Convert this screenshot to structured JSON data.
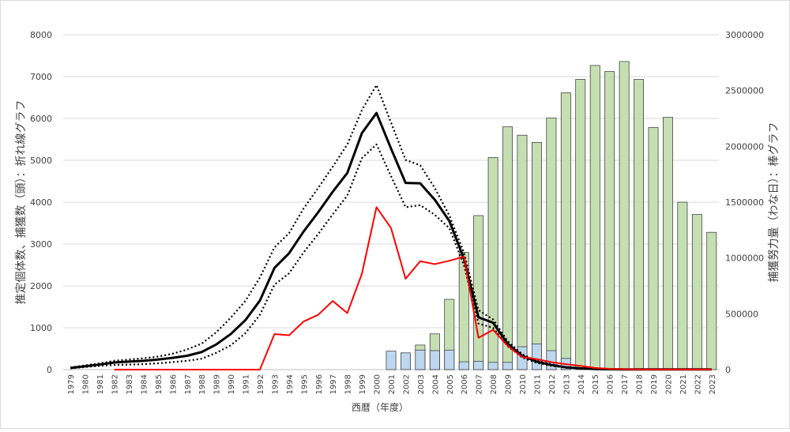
{
  "chart_data": {
    "type": "bar+line",
    "x_axis": {
      "title": "西暦（年度）",
      "categories": [
        "1979",
        "1980",
        "1981",
        "1982",
        "1983",
        "1984",
        "1985",
        "1986",
        "1987",
        "1988",
        "1989",
        "1990",
        "1991",
        "1992",
        "1993",
        "1994",
        "1995",
        "1996",
        "1997",
        "1998",
        "1999",
        "2000",
        "2001",
        "2002",
        "2003",
        "2004",
        "2005",
        "2006",
        "2007",
        "2008",
        "2009",
        "2010",
        "2011",
        "2012",
        "2013",
        "2014",
        "2015",
        "2016",
        "2017",
        "2018",
        "2019",
        "2020",
        "2021",
        "2022",
        "2023"
      ]
    },
    "y_left": {
      "title": "推定個体数、捕獲数（頭）：折れ線グラフ",
      "min": 0,
      "max": 8000,
      "ticks": [
        0,
        1000,
        2000,
        3000,
        4000,
        5000,
        6000,
        7000,
        8000
      ]
    },
    "y_right": {
      "title": "捕獲努力量（わな日）：棒グラフ",
      "min": 0,
      "max": 3000000,
      "ticks": [
        0,
        500000,
        1000000,
        1500000,
        2000000,
        2500000,
        3000000
      ]
    },
    "bar_series": [
      {
        "color": "#c5dfb3",
        "stroke": "#2f2f2f",
        "values": [
          null,
          null,
          null,
          null,
          null,
          null,
          null,
          null,
          null,
          null,
          null,
          null,
          null,
          null,
          null,
          null,
          null,
          null,
          null,
          null,
          null,
          null,
          null,
          null,
          220000,
          320000,
          630000,
          1050000,
          1380000,
          1900000,
          2175000,
          2100000,
          2035000,
          2255000,
          2480000,
          2600000,
          2725000,
          2670000,
          2760000,
          2600000,
          2170000,
          2260000,
          1500000,
          1390000,
          1230000
        ]
      },
      {
        "color": "#bdd7ee",
        "stroke": "#2f2f2f",
        "values": [
          null,
          null,
          null,
          null,
          null,
          null,
          null,
          null,
          null,
          null,
          null,
          null,
          null,
          null,
          null,
          null,
          null,
          null,
          null,
          null,
          null,
          null,
          165000,
          150000,
          175000,
          170000,
          175000,
          70000,
          75000,
          65000,
          65000,
          205000,
          230000,
          170000,
          100000,
          null,
          null,
          null,
          null,
          null,
          null,
          null,
          null,
          null,
          null
        ]
      }
    ],
    "line_series": [
      {
        "style": "solid-black",
        "color": "#000000",
        "values": [
          40,
          80,
          120,
          170,
          190,
          210,
          240,
          280,
          330,
          420,
          600,
          850,
          1180,
          1650,
          2430,
          2780,
          3300,
          3760,
          4250,
          4700,
          5650,
          6130,
          5280,
          4460,
          4450,
          4060,
          3550,
          2650,
          1250,
          1120,
          620,
          330,
          190,
          110,
          55,
          30,
          15,
          10,
          5,
          5,
          5,
          5,
          5,
          5,
          5
        ]
      },
      {
        "style": "dotted-upper",
        "color": "#000000",
        "values": [
          50,
          100,
          150,
          210,
          240,
          270,
          310,
          380,
          480,
          620,
          890,
          1240,
          1640,
          2200,
          2920,
          3260,
          3850,
          4340,
          4850,
          5380,
          6200,
          6800,
          5900,
          5010,
          4880,
          4340,
          3680,
          2800,
          1420,
          1200,
          680,
          370,
          210,
          130,
          60,
          35,
          15,
          10,
          5,
          5,
          5,
          5,
          5,
          5,
          5
        ]
      },
      {
        "style": "dotted-lower",
        "color": "#000000",
        "values": [
          30,
          60,
          90,
          110,
          120,
          130,
          150,
          180,
          210,
          260,
          400,
          580,
          870,
          1310,
          2030,
          2300,
          2800,
          3240,
          3710,
          4160,
          5050,
          5380,
          4620,
          3880,
          3930,
          3700,
          3380,
          2500,
          1100,
          1000,
          560,
          290,
          160,
          90,
          45,
          25,
          10,
          5,
          5,
          5,
          5,
          5,
          5,
          5,
          5
        ]
      },
      {
        "style": "solid-red",
        "color": "#ff0000",
        "values": [
          null,
          null,
          null,
          0,
          0,
          0,
          0,
          0,
          0,
          0,
          0,
          0,
          0,
          0,
          850,
          820,
          1150,
          1310,
          1640,
          1350,
          2290,
          3880,
          3380,
          2170,
          2590,
          2520,
          2600,
          2700,
          760,
          950,
          570,
          300,
          250,
          180,
          130,
          90,
          40,
          20,
          10,
          5,
          5,
          5,
          5,
          5,
          5
        ]
      }
    ]
  }
}
